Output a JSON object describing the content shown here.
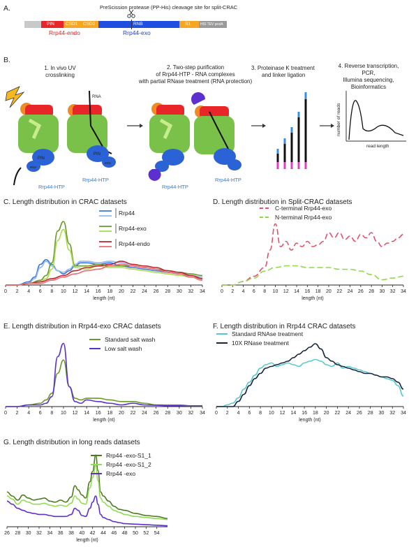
{
  "panel_a": {
    "label": "A.",
    "cleavage_note": "PreScission protease (PP-His) cleavage site for split-CRAC",
    "domains": [
      {
        "name": "PIN",
        "color": "#e8262a"
      },
      {
        "name": "CSD1",
        "color": "#f5a623"
      },
      {
        "name": "CSD2",
        "color": "#f5a623"
      },
      {
        "name": "RNB",
        "color": "#1f4fe0"
      },
      {
        "name": "S1",
        "color": "#f5a623"
      },
      {
        "name": "HIS TEV protA",
        "color": "#9a9a9a"
      }
    ],
    "endo_label": "Rrp44-endo",
    "exo_label": "Rrp44-exo"
  },
  "panel_b": {
    "label": "B.",
    "step1": "1. In vivo UV crosslinking",
    "step2_l1": "2. Two-step purification",
    "step2_l2": "of Rrp44-HTP - RNA complexes",
    "step2_l3": "with partial RNase treatment (RNA protection)",
    "step3_l1": "3. Proteinase K treatment",
    "step3_l2": "and linker ligation",
    "step4_l1": "4. Reverse transcription,",
    "step4_l2": "PCR,",
    "step4_l3": "Illumina sequencing,",
    "step4_l4": "Bioinformatics",
    "rna": "RNA",
    "pin": "PIN",
    "exo": "exo",
    "rrp44_htp": "Rrp44-HTP",
    "y_axis": "number of reads",
    "x_axis": "read length"
  },
  "chart_data": [
    {
      "id": "C",
      "type": "line",
      "title": "C. Length distribution in CRAC datasets",
      "xlabel": "length (nt)",
      "xlim": [
        0,
        34
      ],
      "xticks": [
        0,
        2,
        4,
        6,
        8,
        10,
        12,
        14,
        16,
        18,
        20,
        22,
        24,
        26,
        28,
        30,
        32,
        34
      ],
      "legend": [
        "Rrp44",
        "Rrp44-exo",
        "Rrp44-endo"
      ],
      "series": [
        {
          "color": "#3a78d8",
          "x": [
            0,
            2,
            4,
            5,
            6,
            7,
            8,
            9,
            10,
            11,
            12,
            13,
            14,
            16,
            18,
            20,
            22,
            24,
            26,
            28,
            30,
            32,
            34
          ],
          "y": [
            0,
            0,
            2,
            5,
            13,
            16,
            13,
            9,
            7,
            9,
            12,
            14,
            14,
            13,
            14,
            12,
            11,
            10,
            9,
            8,
            7,
            6,
            5
          ]
        },
        {
          "color": "#8fb8ef",
          "x": [
            0,
            2,
            4,
            5,
            6,
            7,
            8,
            9,
            10,
            11,
            12,
            13,
            14,
            16,
            18,
            20,
            22,
            24,
            26,
            28,
            30,
            32,
            34
          ],
          "y": [
            0,
            0,
            1,
            4,
            11,
            15,
            12,
            9,
            8,
            10,
            13,
            15,
            15,
            14,
            15,
            14,
            12,
            11,
            10,
            8,
            7,
            6,
            5
          ]
        },
        {
          "color": "#6a9a28",
          "x": [
            0,
            2,
            4,
            6,
            7,
            8,
            9,
            10,
            11,
            12,
            14,
            16,
            18,
            20,
            22,
            24,
            26,
            28,
            30,
            32,
            34
          ],
          "y": [
            0,
            0,
            1,
            3,
            6,
            14,
            34,
            40,
            26,
            12,
            12,
            13,
            12,
            12,
            12,
            11,
            10,
            9,
            8,
            7,
            6
          ]
        },
        {
          "color": "#a7dc4d",
          "x": [
            0,
            2,
            4,
            6,
            7,
            8,
            9,
            10,
            11,
            12,
            14,
            16,
            18,
            20,
            22,
            24,
            26,
            28,
            30,
            32,
            34
          ],
          "y": [
            0,
            0,
            1,
            2,
            4,
            10,
            28,
            35,
            22,
            11,
            10,
            12,
            11,
            11,
            10,
            9,
            8,
            7,
            6,
            5,
            4
          ]
        },
        {
          "color": "#c0202a",
          "x": [
            0,
            2,
            4,
            6,
            8,
            10,
            12,
            14,
            16,
            18,
            20,
            22,
            24,
            26,
            28,
            30,
            32,
            34
          ],
          "y": [
            0,
            0,
            1,
            2,
            4,
            6,
            9,
            11,
            12,
            13,
            15,
            13,
            12,
            11,
            9,
            8,
            6,
            4
          ]
        },
        {
          "color": "#ee6a70",
          "x": [
            0,
            2,
            4,
            6,
            8,
            10,
            12,
            14,
            16,
            18,
            20,
            22,
            24,
            26,
            28,
            30,
            32,
            34
          ],
          "y": [
            0,
            0,
            1,
            1,
            3,
            5,
            7,
            9,
            10,
            12,
            13,
            12,
            11,
            10,
            8,
            7,
            5,
            3
          ]
        }
      ]
    },
    {
      "id": "D",
      "type": "line",
      "title": "D. Length distribution in Split-CRAC datasets",
      "xlabel": "length (nt)",
      "xlim": [
        0,
        34
      ],
      "xticks": [
        0,
        2,
        4,
        6,
        8,
        10,
        12,
        14,
        16,
        18,
        20,
        22,
        24,
        26,
        28,
        30,
        32,
        34
      ],
      "legend": [
        "C-terminal Rrp44-exo",
        "N-terminal Rrp44-exo"
      ],
      "series": [
        {
          "name": "C-terminal Rrp44-exo",
          "color": "#e0506a",
          "dash": true,
          "x": [
            0,
            2,
            4,
            6,
            8,
            9,
            10,
            11,
            12,
            13,
            14,
            15,
            16,
            17,
            18,
            19,
            20,
            21,
            22,
            23,
            24,
            25,
            26,
            27,
            28,
            29,
            30,
            31,
            32,
            33,
            34
          ],
          "y": [
            0,
            0,
            2,
            5,
            10,
            20,
            35,
            22,
            25,
            20,
            24,
            22,
            25,
            22,
            23,
            25,
            30,
            27,
            30,
            26,
            28,
            25,
            29,
            27,
            30,
            25,
            22,
            24,
            25,
            27,
            29
          ]
        },
        {
          "name": "N-terminal Rrp44-exo",
          "color": "#8ed84a",
          "dash": true,
          "x": [
            0,
            2,
            4,
            6,
            8,
            10,
            12,
            14,
            16,
            18,
            20,
            22,
            24,
            26,
            28,
            30,
            32,
            34
          ],
          "y": [
            0,
            0,
            2,
            4,
            8,
            10,
            11,
            11,
            10,
            10,
            10,
            9,
            9,
            8,
            6,
            3,
            4,
            5
          ]
        }
      ]
    },
    {
      "id": "E",
      "type": "line",
      "title": "E. Length distribution in Rrp44-exo CRAC datasets",
      "xlabel": "length (nt)",
      "xlim": [
        0,
        34
      ],
      "xticks": [
        0,
        2,
        4,
        6,
        8,
        10,
        12,
        14,
        16,
        18,
        20,
        22,
        24,
        26,
        28,
        30,
        32,
        34
      ],
      "legend": [
        "Standard salt wash",
        "Low salt wash"
      ],
      "series": [
        {
          "name": "Standard salt wash",
          "color": "#6a9a28",
          "x": [
            0,
            2,
            4,
            6,
            7,
            8,
            9,
            10,
            11,
            12,
            13,
            14,
            16,
            18,
            20,
            22,
            24,
            26,
            28,
            30,
            32,
            34
          ],
          "y": [
            0,
            0,
            1,
            2,
            4,
            8,
            20,
            28,
            12,
            5,
            4,
            5,
            5,
            4,
            3,
            3,
            2,
            1,
            1,
            1,
            0.5,
            0.5
          ]
        },
        {
          "name": "Low salt wash",
          "color": "#5b2fd0",
          "x": [
            0,
            2,
            4,
            6,
            7,
            8,
            9,
            10,
            11,
            12,
            13,
            14,
            16,
            18,
            20,
            22,
            24,
            26,
            28,
            30,
            32,
            34
          ],
          "y": [
            0,
            0,
            1,
            1,
            2,
            6,
            30,
            38,
            12,
            3,
            2,
            4,
            3,
            2,
            1,
            2,
            1,
            0.8,
            0.5,
            0.5,
            0.3,
            0.3
          ]
        }
      ]
    },
    {
      "id": "F",
      "type": "line",
      "title": "F. Length distribution in Rrp44 CRAC datasets",
      "xlabel": "length (nt)",
      "xlim": [
        0,
        34
      ],
      "xticks": [
        0,
        2,
        4,
        6,
        8,
        10,
        12,
        14,
        16,
        18,
        20,
        22,
        24,
        26,
        28,
        30,
        32,
        34
      ],
      "legend": [
        "Standard RNAse treatment",
        "10X RNase treatment"
      ],
      "series": [
        {
          "name": "Standard RNAse treatment",
          "color": "#57c8cc",
          "x": [
            0,
            1,
            2,
            3,
            4,
            5,
            6,
            7,
            8,
            9,
            10,
            11,
            12,
            13,
            14,
            15,
            16,
            17,
            18,
            19,
            20,
            21,
            22,
            23,
            24,
            25,
            26,
            27,
            28,
            29,
            30,
            31,
            32,
            33,
            34
          ],
          "y": [
            0,
            0,
            1,
            2,
            5,
            10,
            14,
            18,
            22,
            24,
            25,
            23,
            24,
            25,
            24,
            23,
            25,
            26,
            27,
            26,
            24,
            23,
            25,
            22,
            23,
            22,
            21,
            20,
            19,
            18,
            17,
            16,
            15,
            12,
            6
          ]
        },
        {
          "name": "10X RNase treatment",
          "color": "#15223e",
          "x": [
            0,
            1,
            2,
            3,
            4,
            5,
            6,
            7,
            8,
            9,
            10,
            11,
            12,
            13,
            14,
            15,
            16,
            17,
            18,
            19,
            20,
            21,
            22,
            23,
            24,
            25,
            26,
            27,
            28,
            29,
            30,
            31,
            32,
            33,
            34
          ],
          "y": [
            0,
            0,
            0,
            0,
            3,
            7,
            12,
            16,
            19,
            22,
            23,
            24,
            25,
            26,
            28,
            30,
            32,
            34,
            36,
            33,
            28,
            26,
            24,
            23,
            22,
            21,
            20,
            19,
            19,
            18,
            17,
            17,
            16,
            14,
            10
          ]
        }
      ]
    },
    {
      "id": "G",
      "type": "line",
      "title": "G. Length distribution in long reads datasets",
      "xlabel": "length (nt)",
      "xlim": [
        26,
        56
      ],
      "xticks": [
        26,
        28,
        30,
        32,
        34,
        36,
        38,
        40,
        42,
        44,
        46,
        48,
        50,
        52,
        54
      ],
      "legend": [
        "Rrp44 -exo-S1_1",
        "Rrp44 -exo-S1_2",
        "Rrp44 -exo"
      ],
      "series": [
        {
          "name": "Rrp44 -exo-S1_1",
          "color": "#4d7a1e",
          "x": [
            26,
            27,
            28,
            29,
            30,
            31,
            32,
            33,
            34,
            35,
            36,
            37,
            38,
            38.7,
            39.3,
            40,
            40.7,
            41.5,
            42,
            42.6,
            43,
            43.5,
            44,
            45,
            46,
            47,
            48,
            50,
            52,
            54,
            56
          ],
          "y": [
            34,
            30,
            26,
            31,
            28,
            26,
            27,
            28,
            25,
            24,
            26,
            24,
            29,
            40,
            36,
            31,
            28,
            44,
            54,
            70,
            55,
            34,
            30,
            25,
            20,
            17,
            16,
            13,
            11,
            10,
            8
          ]
        },
        {
          "name": "Rrp44 -exo-S1_2",
          "color": "#8fdc55",
          "x": [
            26,
            27,
            28,
            29,
            30,
            31,
            32,
            33,
            34,
            35,
            36,
            37,
            38,
            38.7,
            39.3,
            40,
            40.7,
            41.5,
            42,
            42.6,
            43,
            43.5,
            44,
            45,
            46,
            47,
            48,
            50,
            52,
            54,
            56
          ],
          "y": [
            30,
            27,
            22,
            26,
            24,
            22,
            22,
            23,
            21,
            20,
            21,
            20,
            23,
            30,
            27,
            23,
            22,
            38,
            48,
            60,
            45,
            28,
            24,
            20,
            16,
            14,
            12,
            10,
            9,
            8,
            7
          ]
        },
        {
          "name": "Rrp44 -exo",
          "color": "#5b2fd0",
          "x": [
            26,
            27,
            28,
            29,
            30,
            31,
            32,
            33,
            34,
            35,
            36,
            37,
            38,
            38.7,
            39.3,
            40,
            40.7,
            41.5,
            42,
            42.6,
            43,
            43.5,
            44,
            45,
            46,
            47,
            48,
            50,
            52,
            54,
            56
          ],
          "y": [
            25,
            22,
            18,
            16,
            14,
            13,
            12,
            12,
            11,
            10,
            10,
            10,
            12,
            18,
            16,
            11,
            10,
            18,
            24,
            30,
            22,
            12,
            9,
            7,
            5,
            4,
            3,
            2.5,
            2,
            1.5,
            1
          ]
        }
      ]
    }
  ]
}
